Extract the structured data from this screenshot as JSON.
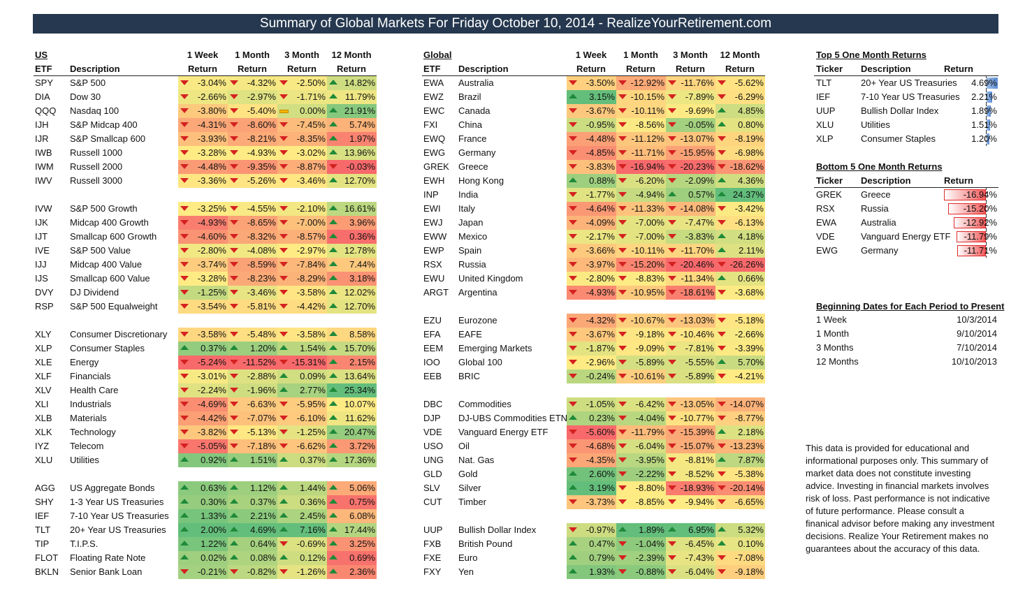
{
  "title": "Summary of Global Markets For Friday October 10, 2014 - RealizeYourRetirement.com",
  "us": {
    "header": {
      "group": "US",
      "etf": "ETF",
      "desc": "Description",
      "p1": "1 Week",
      "p2": "1 Month",
      "p3": "3 Month",
      "p4": "12 Month",
      "ret": "Return"
    },
    "rows": [
      [
        "SPY",
        "S&P 500",
        "-3.04%",
        "-4.32%",
        "-2.50%",
        "14.82%"
      ],
      [
        "DIA",
        "Dow 30",
        "-2.66%",
        "-2.97%",
        "-1.71%",
        "11.79%"
      ],
      [
        "QQQ",
        "Nasdaq 100",
        "-3.80%",
        "-5.40%",
        "0.00%",
        "21.91%"
      ],
      [
        "IJH",
        "S&P Midcap 400",
        "-4.31%",
        "-8.60%",
        "-7.45%",
        "5.74%"
      ],
      [
        "IJR",
        "S&P Smallcap 600",
        "-3.93%",
        "-8.21%",
        "-8.35%",
        "1.97%"
      ],
      [
        "IWB",
        "Russell 1000",
        "-3.28%",
        "-4.93%",
        "-3.02%",
        "13.96%"
      ],
      [
        "IWM",
        "Russell 2000",
        "-4.48%",
        "-9.35%",
        "-8.87%",
        "-0.03%"
      ],
      [
        "IWV",
        "Russell 3000",
        "-3.36%",
        "-5.26%",
        "-3.46%",
        "12.70%"
      ],
      null,
      [
        "IVW",
        "S&P 500 Growth",
        "-3.25%",
        "-4.55%",
        "-2.10%",
        "16.61%"
      ],
      [
        "IJK",
        "Midcap 400 Growth",
        "-4.93%",
        "-8.65%",
        "-7.00%",
        "3.96%"
      ],
      [
        "IJT",
        "Smallcap 600 Growth",
        "-4.60%",
        "-8.32%",
        "-8.57%",
        "0.36%"
      ],
      [
        "IVE",
        "S&P 500 Value",
        "-2.80%",
        "-4.08%",
        "-2.97%",
        "12.78%"
      ],
      [
        "IJJ",
        "Midcap 400 Value",
        "-3.74%",
        "-8.59%",
        "-7.84%",
        "7.44%"
      ],
      [
        "IJS",
        "Smallcap 600 Value",
        "-3.28%",
        "-8.23%",
        "-8.29%",
        "3.18%"
      ],
      [
        "DVY",
        "DJ Dividend",
        "-1.25%",
        "-3.46%",
        "-3.58%",
        "12.02%"
      ],
      [
        "RSP",
        "S&P 500 Equalweight",
        "-3.54%",
        "-5.81%",
        "-4.42%",
        "12.70%"
      ],
      null,
      [
        "XLY",
        "Consumer Discretionary",
        "-3.58%",
        "-5.48%",
        "-3.58%",
        "8.58%"
      ],
      [
        "XLP",
        "Consumer Staples",
        "0.37%",
        "1.20%",
        "1.54%",
        "15.70%"
      ],
      [
        "XLE",
        "Energy",
        "-5.24%",
        "-11.52%",
        "-15.31%",
        "2.15%"
      ],
      [
        "XLF",
        "Financials",
        "-3.01%",
        "-2.88%",
        "0.09%",
        "13.64%"
      ],
      [
        "XLV",
        "Health Care",
        "-2.24%",
        "-1.96%",
        "2.77%",
        "25.34%"
      ],
      [
        "XLI",
        "Industrials",
        "-4.69%",
        "-6.63%",
        "-5.95%",
        "10.07%"
      ],
      [
        "XLB",
        "Materials",
        "-4.42%",
        "-7.07%",
        "-6.10%",
        "11.62%"
      ],
      [
        "XLK",
        "Technology",
        "-3.82%",
        "-5.13%",
        "-1.25%",
        "20.47%"
      ],
      [
        "IYZ",
        "Telecom",
        "-5.05%",
        "-7.18%",
        "-6.62%",
        "3.72%"
      ],
      [
        "XLU",
        "Utilities",
        "0.92%",
        "1.51%",
        "0.37%",
        "17.36%"
      ],
      null,
      [
        "AGG",
        "US Aggregate Bonds",
        "0.63%",
        "1.12%",
        "1.44%",
        "5.06%"
      ],
      [
        "SHY",
        "1-3 Year US Treasuries",
        "0.30%",
        "0.37%",
        "0.36%",
        "0.75%"
      ],
      [
        "IEF",
        "7-10 Year US Treasuries",
        "1.33%",
        "2.21%",
        "2.45%",
        "6.08%"
      ],
      [
        "TLT",
        "20+ Year US Treasuries",
        "2.00%",
        "4.69%",
        "7.16%",
        "17.44%"
      ],
      [
        "TIP",
        "T.I.P.S.",
        "1.22%",
        "0.64%",
        "-0.69%",
        "3.25%"
      ],
      [
        "FLOT",
        "Floating Rate Note",
        "0.02%",
        "0.08%",
        "0.12%",
        "0.69%"
      ],
      [
        "BKLN",
        "Senior Bank Loan",
        "-0.21%",
        "-0.82%",
        "-1.26%",
        "2.36%"
      ]
    ]
  },
  "global": {
    "header": {
      "group": "Global",
      "etf": "ETF",
      "desc": "Description",
      "p1": "1 Week",
      "p2": "1 Month",
      "p3": "3 Month",
      "p4": "12 Month",
      "ret": "Return"
    },
    "rows": [
      [
        "EWA",
        "Australia",
        "-3.50%",
        "-12.92%",
        "-11.76%",
        "-5.62%"
      ],
      [
        "EWZ",
        "Brazil",
        "3.15%",
        "-10.15%",
        "-7.89%",
        "-6.29%"
      ],
      [
        "EWC",
        "Canada",
        "-3.67%",
        "-10.11%",
        "-9.69%",
        "4.85%"
      ],
      [
        "FXI",
        "China",
        "-0.95%",
        "-8.56%",
        "-0.05%",
        "0.80%"
      ],
      [
        "EWQ",
        "France",
        "-4.48%",
        "-11.12%",
        "-13.07%",
        "-8.19%"
      ],
      [
        "EWG",
        "Germany",
        "-4.85%",
        "-11.71%",
        "-15.95%",
        "-6.98%"
      ],
      [
        "GREK",
        "Greece",
        "-3.83%",
        "-16.94%",
        "-20.23%",
        "-18.62%"
      ],
      [
        "EWH",
        "Hong Kong",
        "0.88%",
        "-6.20%",
        "-2.09%",
        "4.36%"
      ],
      [
        "INP",
        "India",
        "-1.77%",
        "-4.94%",
        "0.57%",
        "24.37%"
      ],
      [
        "EWI",
        "Italy",
        "-4.64%",
        "-11.33%",
        "-14.08%",
        "-3.42%"
      ],
      [
        "EWJ",
        "Japan",
        "-4.09%",
        "-7.00%",
        "-7.47%",
        "-6.13%"
      ],
      [
        "EWW",
        "Mexico",
        "-2.17%",
        "-7.00%",
        "-3.83%",
        "4.18%"
      ],
      [
        "EWP",
        "Spain",
        "-3.66%",
        "-10.11%",
        "-11.70%",
        "2.11%"
      ],
      [
        "RSX",
        "Russia",
        "-3.97%",
        "-15.20%",
        "-20.46%",
        "-26.26%"
      ],
      [
        "EWU",
        "United Kingdom",
        "-2.80%",
        "-8.83%",
        "-11.34%",
        "0.66%"
      ],
      [
        "ARGT",
        "Argentina",
        "-4.93%",
        "-10.95%",
        "-18.61%",
        "-3.68%"
      ],
      null,
      [
        "EZU",
        "Eurozone",
        "-4.32%",
        "-10.67%",
        "-13.03%",
        "-5.18%"
      ],
      [
        "EFA",
        "EAFE",
        "-3.67%",
        "-9.18%",
        "-10.46%",
        "-2.66%"
      ],
      [
        "EEM",
        "Emerging Markets",
        "-1.87%",
        "-9.09%",
        "-7.81%",
        "-3.39%"
      ],
      [
        "IOO",
        "Global 100",
        "-2.96%",
        "-5.89%",
        "-5.55%",
        "5.70%"
      ],
      [
        "EEB",
        "BRIC",
        "-0.24%",
        "-10.61%",
        "-5.89%",
        "-4.21%"
      ],
      null,
      [
        "DBC",
        "Commodities",
        "-1.05%",
        "-6.42%",
        "-13.05%",
        "-14.07%"
      ],
      [
        "DJP",
        "DJ-UBS Commodities ETN",
        "0.23%",
        "-4.04%",
        "-10.77%",
        "-8.77%"
      ],
      [
        "VDE",
        "Vanguard Energy ETF",
        "-5.60%",
        "-11.79%",
        "-15.39%",
        "2.18%"
      ],
      [
        "USO",
        "Oil",
        "-4.68%",
        "-6.04%",
        "-15.07%",
        "-13.23%"
      ],
      [
        "UNG",
        "Nat. Gas",
        "-4.35%",
        "-3.95%",
        "-8.81%",
        "7.87%"
      ],
      [
        "GLD",
        "Gold",
        "2.60%",
        "-2.22%",
        "-8.52%",
        "-5.38%"
      ],
      [
        "SLV",
        "Silver",
        "3.19%",
        "-8.80%",
        "-18.93%",
        "-20.14%"
      ],
      [
        "CUT",
        "Timber",
        "-3.73%",
        "-8.85%",
        "-9.94%",
        "-6.65%"
      ],
      null,
      [
        "UUP",
        "Bullish Dollar Index",
        "-0.97%",
        "1.89%",
        "6.95%",
        "5.32%"
      ],
      [
        "FXB",
        "British Pound",
        "0.47%",
        "-1.04%",
        "-6.45%",
        "0.10%"
      ],
      [
        "FXE",
        "Euro",
        "0.79%",
        "-2.39%",
        "-7.43%",
        "-7.08%"
      ],
      [
        "FXY",
        "Yen",
        "1.93%",
        "-0.88%",
        "-6.04%",
        "-9.18%"
      ]
    ]
  },
  "top5": {
    "title": "Top 5 One Month Returns",
    "col_ticker": "Ticker",
    "col_desc": "Description",
    "col_ret": "Return",
    "rows": [
      [
        "TLT",
        "20+ Year US Treasuries",
        "4.69%",
        4.69
      ],
      [
        "IEF",
        "7-10 Year US Treasuries",
        "2.21%",
        2.21
      ],
      [
        "UUP",
        "Bullish Dollar Index",
        "1.89%",
        1.89
      ],
      [
        "XLU",
        "Utilities",
        "1.51%",
        1.51
      ],
      [
        "XLP",
        "Consumer Staples",
        "1.20%",
        1.2
      ]
    ]
  },
  "bottom5": {
    "title": "Bottom 5 One Month Returns",
    "col_ticker": "Ticker",
    "col_desc": "Description",
    "col_ret": "Return",
    "rows": [
      [
        "GREK",
        "Greece",
        "-16.94%",
        -16.94
      ],
      [
        "RSX",
        "Russia",
        "-15.20%",
        -15.2
      ],
      [
        "EWA",
        "Australia",
        "-12.92%",
        -12.92
      ],
      [
        "VDE",
        "Vanguard Energy ETF",
        "-11.79%",
        -11.79
      ],
      [
        "EWG",
        "Germany",
        "-11.71%",
        -11.71
      ]
    ]
  },
  "dates": {
    "title": "Beginning Dates for Each Period to Present",
    "rows": [
      [
        "1 Week",
        "10/3/2014"
      ],
      [
        "1 Month",
        "9/10/2014"
      ],
      [
        "3 Months",
        "7/10/2014"
      ],
      [
        "12 Months",
        "10/10/2013"
      ]
    ]
  },
  "disclaimer": "This data is provided for educational and informational purposes only. This summary of market data does not constitute investing advice. Investing in financial markets involves risk of loss.  Past performance is not indicative of future performance. Please consult a finanical advisor before making any investment decisions. Realize Your Retirement makes no guarantees about the accuracy of this data.",
  "colors": {
    "title_bg": "#25384f",
    "up_icon": "#1e8a3a",
    "down_icon": "#d52121",
    "bar_pos": "#5b8fd6",
    "bar_neg": "#f25a5a"
  }
}
